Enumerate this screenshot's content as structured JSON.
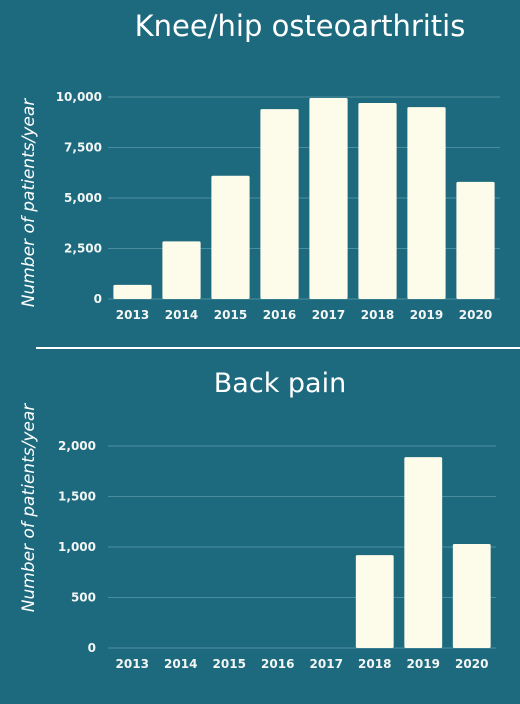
{
  "colors": {
    "background": "#1d6a7f",
    "bar": "#fdfbea",
    "text": "#ffffff",
    "tick_text": "#f2f6f4",
    "grid": "#4a8d9e",
    "divider": "#ffffff"
  },
  "chart_data": [
    {
      "type": "bar",
      "title": "Knee/hip osteoarthritis",
      "ylabel": "Number of patients/year",
      "xlabel": "",
      "categories": [
        "2013",
        "2014",
        "2015",
        "2016",
        "2017",
        "2018",
        "2019",
        "2020"
      ],
      "values": [
        700,
        2850,
        6100,
        9400,
        9950,
        9700,
        9500,
        5800
      ],
      "yticks": [
        "0",
        "2,500",
        "5,000",
        "7,500",
        "10,000"
      ],
      "ytick_values": [
        0,
        2500,
        5000,
        7500,
        10000
      ],
      "ylim": [
        0,
        10000
      ],
      "grid": true
    },
    {
      "type": "bar",
      "title": "Back pain",
      "ylabel": "Number of patients/year",
      "xlabel": "",
      "categories": [
        "2013",
        "2014",
        "2015",
        "2016",
        "2017",
        "2018",
        "2019",
        "2020"
      ],
      "values": [
        0,
        0,
        0,
        0,
        0,
        920,
        1890,
        1030
      ],
      "yticks": [
        "0",
        "500",
        "1,000",
        "1,500",
        "2,000"
      ],
      "ytick_values": [
        0,
        500,
        1000,
        1500,
        2000
      ],
      "ylim": [
        0,
        2000
      ],
      "grid": true
    }
  ]
}
